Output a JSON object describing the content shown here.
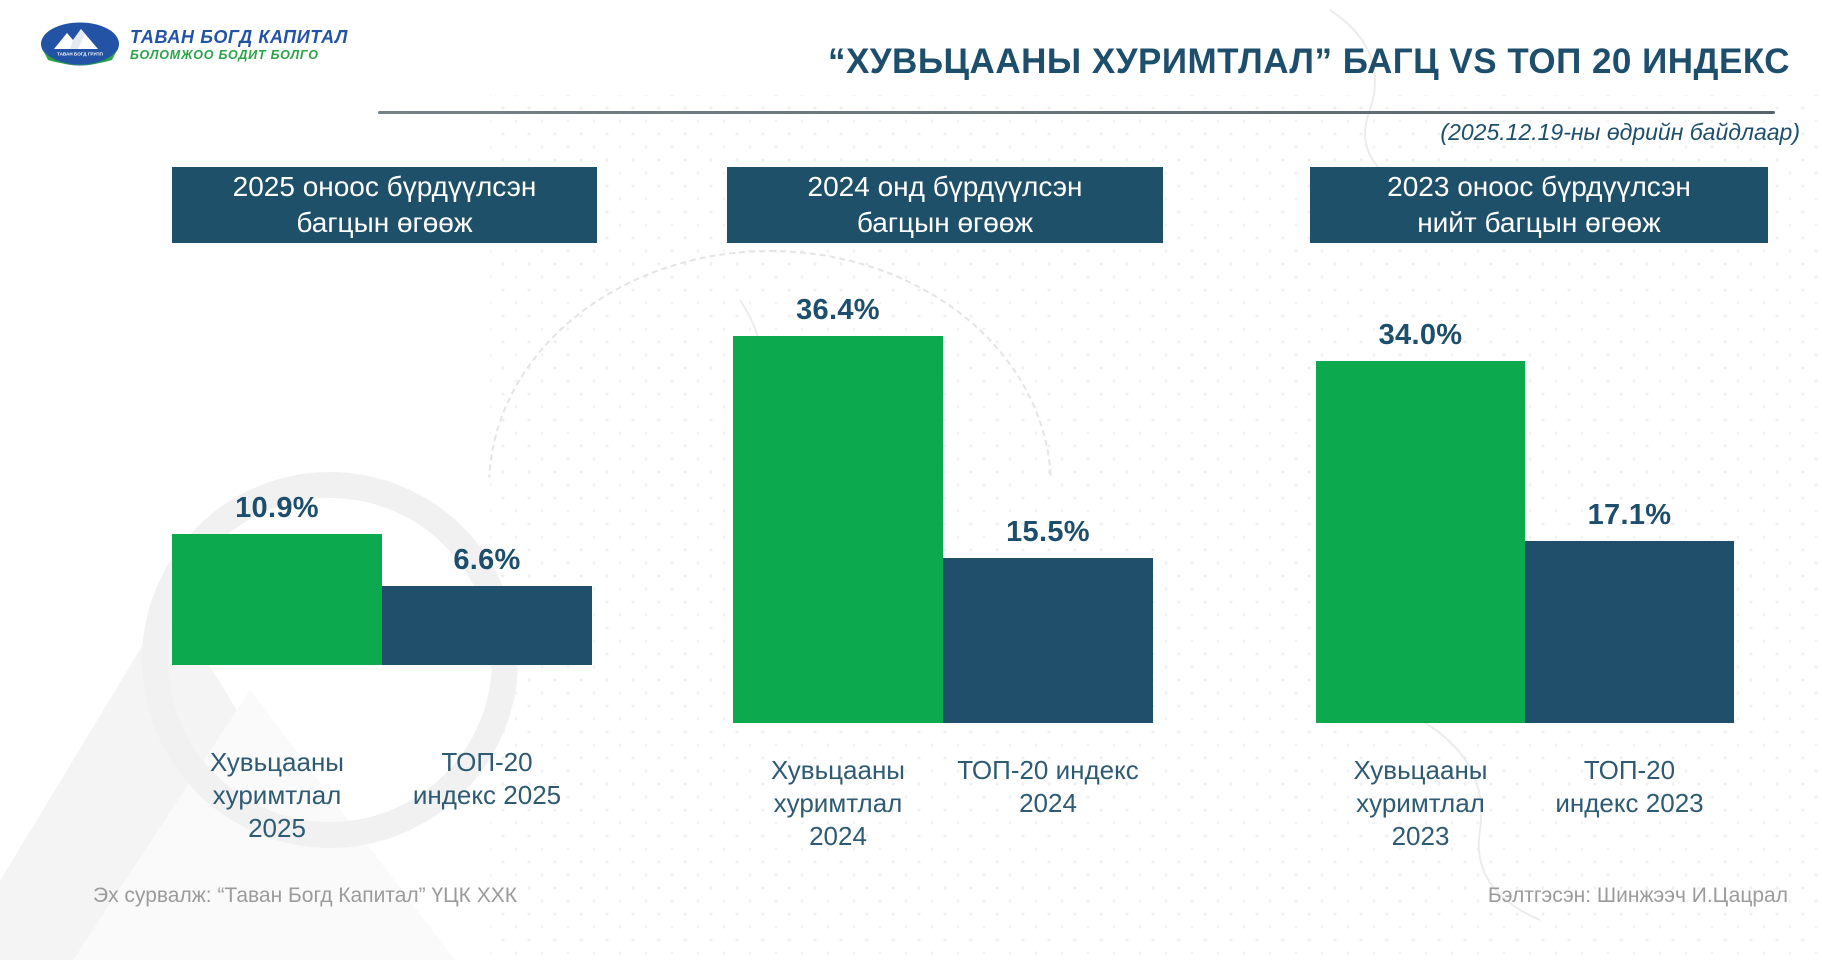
{
  "page": {
    "title": "“ХУВЬЦААНЫ ХУРИМТЛАЛ” БАГЦ VS ТОП 20 ИНДЕКС",
    "as_of": "(2025.12.19-ны өдрийн байдлаар)"
  },
  "logo": {
    "name_line": "ТАВАН БОГД КАПИТАЛ",
    "tagline": "БОЛОМЖОО БОДИТ БОЛГО",
    "emblem_text": "ТАВАН БОГД ГРУПП"
  },
  "footer": {
    "source": "Эх сурвалж: “Таван Богд Капитал” ҮЦК ХХК",
    "prepared_by": "Бэлтгэсэн: Шинжээч  И.Цацрал"
  },
  "colors": {
    "green": "#0ca94e",
    "dark_blue": "#204f6b",
    "header_box": "#1f5069",
    "title_text": "#1d4e6b",
    "category_text": "#2e5b73",
    "footer_text": "#9b9b9b",
    "logo_blue": "#2353a4",
    "logo_green": "#2aa347",
    "divider": "#56646d"
  },
  "chart_data": [
    {
      "type": "bar",
      "title": "2025 оноос бүрдүүлсэн\nбагцын өгөөж",
      "categories": [
        "Хувьцааны\nхуримтлал\n2025",
        "ТОП-20\nиндекс 2025"
      ],
      "values": [
        10.9,
        6.6
      ],
      "value_labels": [
        "10.9%",
        "6.6%"
      ],
      "unit": "%",
      "series_colors": [
        "green",
        "dark_blue"
      ],
      "ylim": [
        0,
        40
      ],
      "grid": false,
      "legend": "none"
    },
    {
      "type": "bar",
      "title": "2024 онд бүрдүүлсэн\nбагцын өгөөж",
      "categories": [
        "Хувьцааны\nхуримтлал\n2024",
        "ТОП-20 индекс\n2024"
      ],
      "values": [
        36.4,
        15.5
      ],
      "value_labels": [
        "36.4%",
        "15.5%"
      ],
      "unit": "%",
      "series_colors": [
        "green",
        "dark_blue"
      ],
      "ylim": [
        0,
        40
      ],
      "grid": false,
      "legend": "none"
    },
    {
      "type": "bar",
      "title": "2023 оноос бүрдүүлсэн\nнийт багцын өгөөж",
      "categories": [
        "Хувьцааны\nхуримтлал\n2023",
        "ТОП-20\nиндекс 2023"
      ],
      "values": [
        34.0,
        17.1
      ],
      "value_labels": [
        "34.0%",
        "17.1%"
      ],
      "unit": "%",
      "series_colors": [
        "green",
        "dark_blue"
      ],
      "ylim": [
        0,
        40
      ],
      "grid": false,
      "legend": "none"
    }
  ]
}
